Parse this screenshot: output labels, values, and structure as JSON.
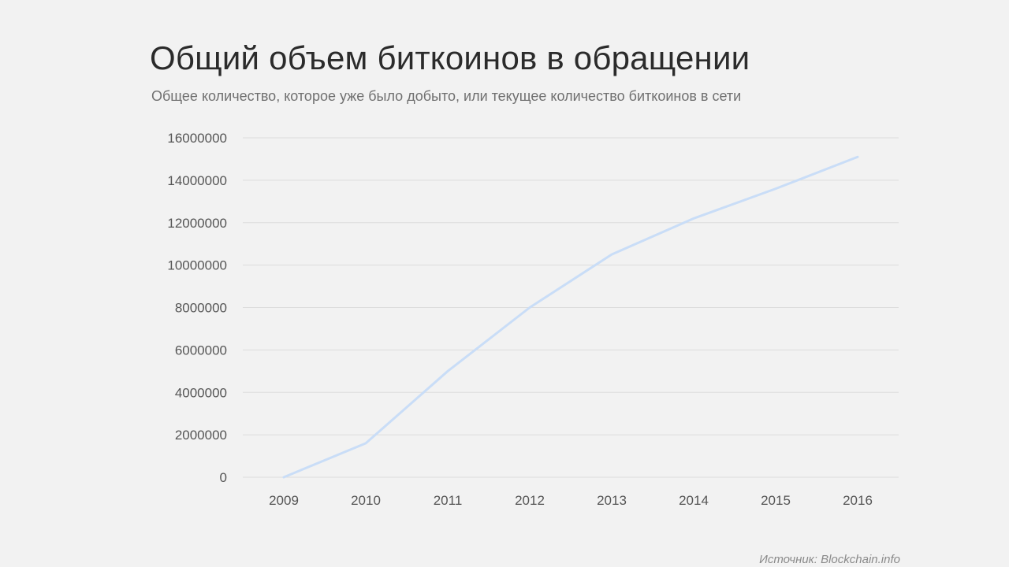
{
  "slide": {
    "title": "Общий объем биткоинов в обращении",
    "subtitle": "Общее количество, которое уже было добыто, или текущее количество биткоинов в сети",
    "source": "Источник: Blockchain.info"
  },
  "chart_data": {
    "type": "line",
    "title": "Общий объем биткоинов в обращении",
    "subtitle": "Общее количество, которое уже было добыто, или текущее количество биткоинов в сети",
    "xlabel": "",
    "ylabel": "",
    "categories": [
      "2009",
      "2010",
      "2011",
      "2012",
      "2013",
      "2014",
      "2015",
      "2016"
    ],
    "series": [
      {
        "values": [
          0,
          1600000,
          5000000,
          8000000,
          10500000,
          12200000,
          13600000,
          15100000
        ],
        "color": "#c9ddf7"
      }
    ],
    "ylim": [
      0,
      16000000
    ],
    "yticks": [
      "0",
      "2000000",
      "4000000",
      "6000000",
      "8000000",
      "10000000",
      "12000000",
      "14000000",
      "16000000"
    ],
    "grid": true,
    "legend": "none"
  }
}
